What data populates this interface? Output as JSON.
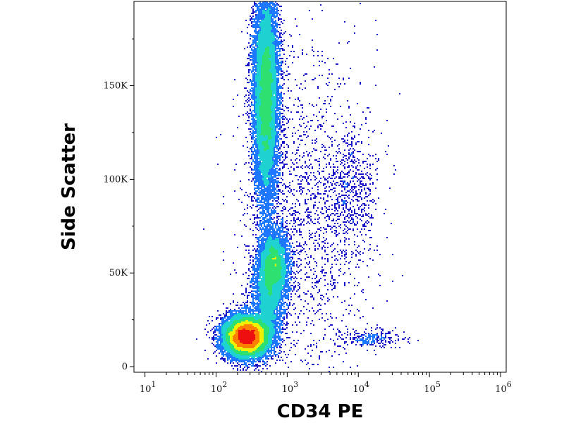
{
  "chart_data": {
    "type": "scatter",
    "style": "density-colored flow cytometry dot plot",
    "xlabel": "CD34 PE",
    "ylabel": "Side Scatter",
    "x_scale": "log",
    "xlim": [
      7,
      1200000
    ],
    "ylim": [
      -3000,
      195000
    ],
    "x_ticks": [
      {
        "value": 10,
        "label": "10",
        "exp": "1"
      },
      {
        "value": 100,
        "label": "10",
        "exp": "2"
      },
      {
        "value": 1000,
        "label": "10",
        "exp": "3"
      },
      {
        "value": 10000,
        "label": "10",
        "exp": "4"
      },
      {
        "value": 100000,
        "label": "10",
        "exp": "5"
      },
      {
        "value": 1000000,
        "label": "10",
        "exp": "6"
      }
    ],
    "y_ticks": [
      {
        "value": 0,
        "label": "0"
      },
      {
        "value": 50000,
        "label": "50K"
      },
      {
        "value": 100000,
        "label": "100K"
      },
      {
        "value": 150000,
        "label": "150K"
      }
    ],
    "grid": false,
    "legend": "none",
    "density_colormap": [
      "#1a14c8",
      "#1e78ff",
      "#1ed2d2",
      "#2ee070",
      "#f0f000",
      "#ff8000",
      "#ee1010"
    ],
    "populations": [
      {
        "id": "lymphocytes",
        "x_center": 270,
        "y_center": 16000,
        "x_log_spread": 0.16,
        "y_spread": 5500,
        "relative_count": 14000
      },
      {
        "id": "granulocytes",
        "x_center": 500,
        "y_center": 145000,
        "x_log_spread": 0.09,
        "y_spread": 30000,
        "relative_count": 12000
      },
      {
        "id": "monocytes",
        "x_center": 650,
        "y_center": 55000,
        "x_log_spread": 0.1,
        "y_spread": 9000,
        "relative_count": 3800
      },
      {
        "id": "bridge",
        "x_center": 550,
        "y_center": 38000,
        "x_log_spread": 0.12,
        "y_spread": 12000,
        "relative_count": 3000
      },
      {
        "id": "cd34_positive",
        "x_center": 8000,
        "y_center": 95000,
        "x_log_spread": 0.18,
        "y_spread": 17000,
        "relative_count": 500
      },
      {
        "id": "cd34_low_ssc",
        "x_center": 15000,
        "y_center": 15000,
        "x_log_spread": 0.22,
        "y_spread": 2500,
        "relative_count": 260
      },
      {
        "id": "background_scatter",
        "x_center": 2000,
        "y_center": 80000,
        "x_log_spread": 0.45,
        "y_spread": 45000,
        "relative_count": 1800
      }
    ]
  }
}
